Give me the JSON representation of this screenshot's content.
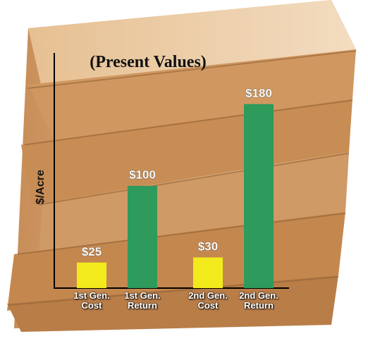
{
  "chart_data": {
    "type": "bar",
    "title": "(Present Values)",
    "y_label": "$/Acre",
    "categories": [
      "1st Gen.\nCost",
      "1st Gen.\nReturn",
      "2nd Gen.\nCost",
      "2nd Gen.\nReturn"
    ],
    "values": [
      25,
      100,
      30,
      180
    ],
    "value_labels": [
      "$25",
      "$100",
      "$30",
      "$180"
    ],
    "colors": [
      "#f2ea1c",
      "#2e9a5c",
      "#f2ea1c",
      "#2e9a5c"
    ],
    "ylim": [
      0,
      230
    ]
  }
}
